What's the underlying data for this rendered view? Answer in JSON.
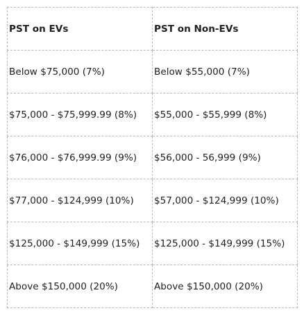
{
  "table": {
    "headers": [
      "PST on EVs",
      "PST on Non-EVs"
    ],
    "rows": [
      [
        "Below $75,000 (7%)",
        "Below $55,000 (7%)"
      ],
      [
        "$75,000 - $75,999.99 (8%)",
        "$55,000 - $55,999 (8%)"
      ],
      [
        "$76,000 - $76,999.99 (9%)",
        "$56,000 - 56,999 (9%)"
      ],
      [
        "$77,000 - $124,999 (10%)",
        "$57,000 - $124,999 (10%)"
      ],
      [
        "$125,000 - $149,999 (15%)",
        "$125,000 - $149,999 (15%)"
      ],
      [
        "Above $150,000 (20%)",
        "Above $150,000 (20%)"
      ]
    ]
  }
}
